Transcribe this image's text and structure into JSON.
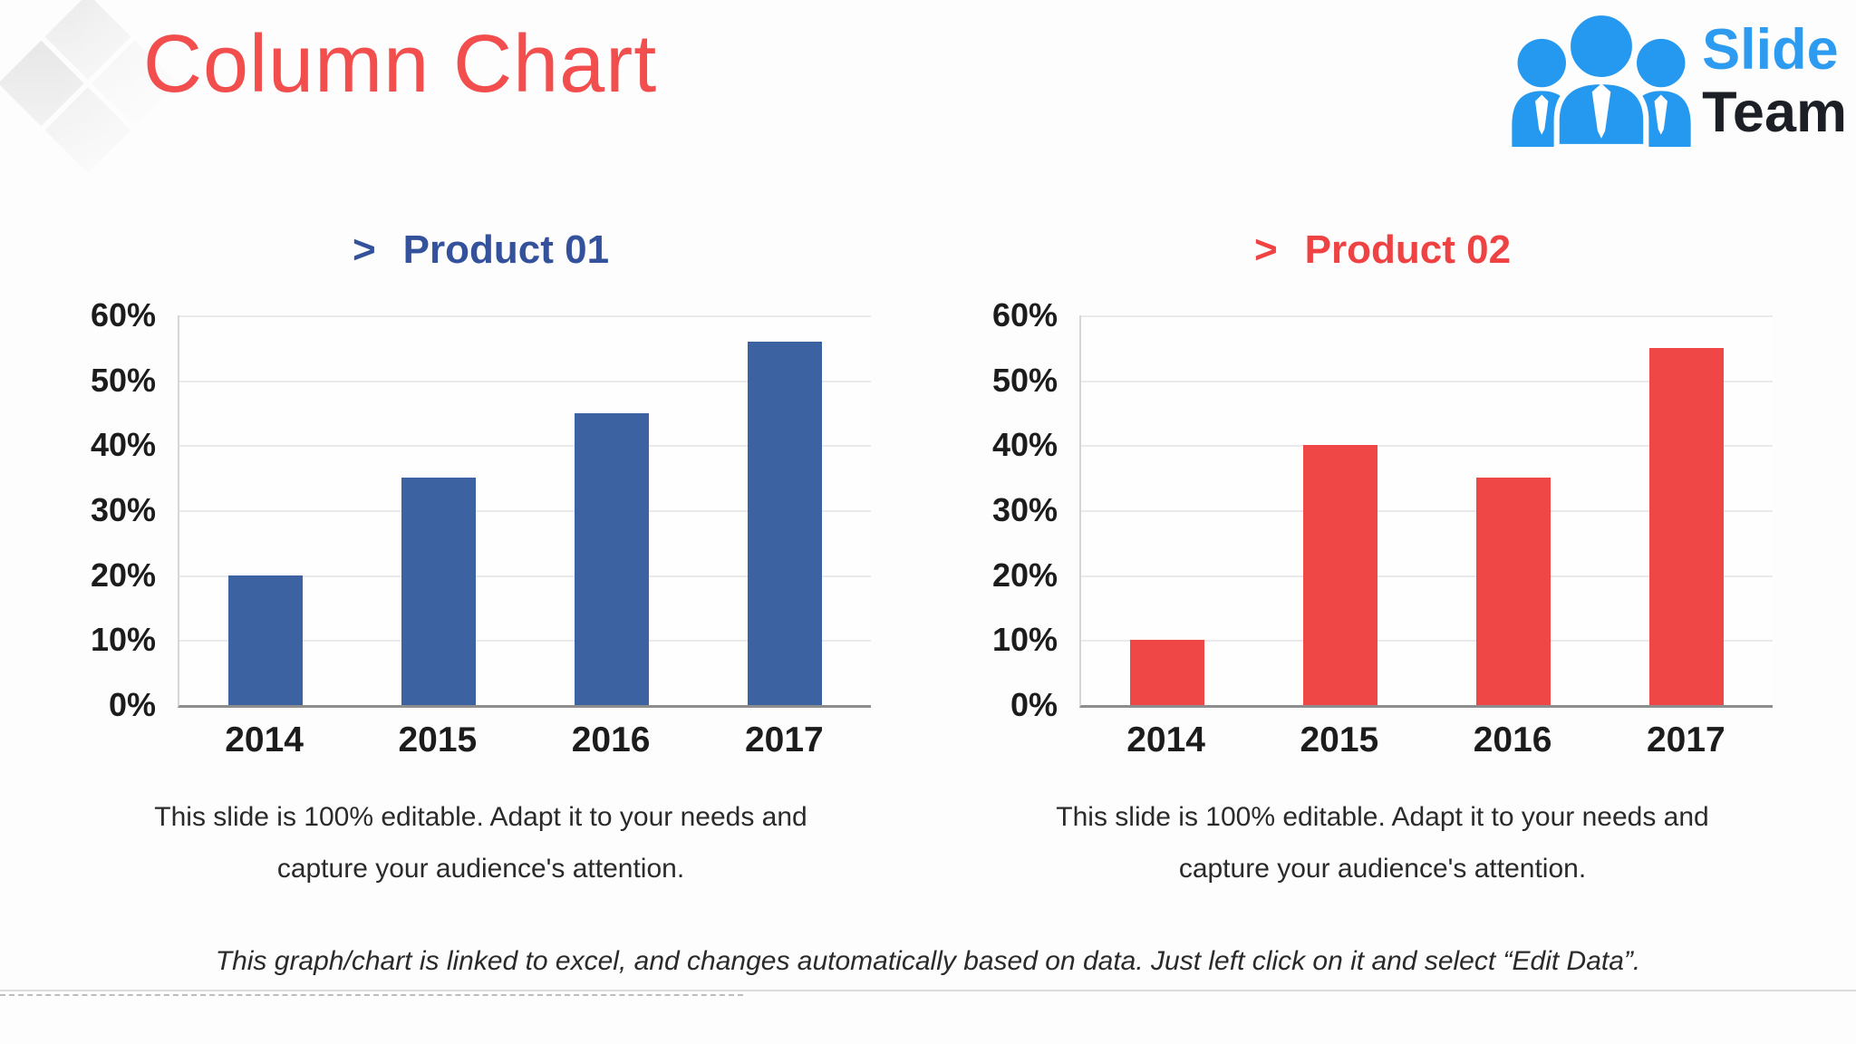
{
  "header": {
    "title": "Column Chart"
  },
  "logo": {
    "word1": "Slide",
    "word2": "Team",
    "icon": "team-people-icon",
    "icon_color": "#2598f0",
    "word1_color": "#2d9cf0",
    "word2_color": "#1c2026"
  },
  "chart_data": [
    {
      "type": "bar",
      "heading_marker": ">",
      "heading_label": "Product 01",
      "title": "Product 01",
      "title_color": "#33529b",
      "bar_color": "#3c62a1",
      "categories": [
        "2014",
        "2015",
        "2016",
        "2017"
      ],
      "values": [
        20,
        35,
        45,
        56
      ],
      "unit": "%",
      "xlabel": "",
      "ylabel": "",
      "ylim": [
        0,
        60
      ],
      "ytick_step": 10,
      "yticks": [
        "60%",
        "50%",
        "40%",
        "30%",
        "20%",
        "10%",
        "0%"
      ],
      "grid": true,
      "legend": "none",
      "caption_lines": [
        "This slide is 100% editable. Adapt it to your needs and",
        "capture your audience's attention."
      ]
    },
    {
      "type": "bar",
      "heading_marker": ">",
      "heading_label": "Product 02",
      "title": "Product 02",
      "title_color": "#ef4343",
      "bar_color": "#ef4646",
      "categories": [
        "2014",
        "2015",
        "2016",
        "2017"
      ],
      "values": [
        10,
        40,
        35,
        55
      ],
      "unit": "%",
      "xlabel": "",
      "ylabel": "",
      "ylim": [
        0,
        60
      ],
      "ytick_step": 10,
      "yticks": [
        "60%",
        "50%",
        "40%",
        "30%",
        "20%",
        "10%",
        "0%"
      ],
      "grid": true,
      "legend": "none",
      "caption_lines": [
        "This slide is 100% editable. Adapt it to your needs and",
        "capture your audience's attention."
      ]
    }
  ],
  "footer": {
    "note": "This graph/chart is linked to excel, and changes automatically based on data. Just left click on it and select “Edit Data”."
  }
}
